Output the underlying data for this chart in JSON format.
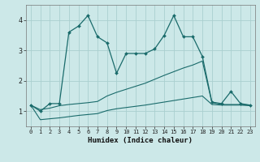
{
  "xlabel": "Humidex (Indice chaleur)",
  "xlim": [
    -0.5,
    23.5
  ],
  "ylim": [
    0.5,
    4.5
  ],
  "yticks": [
    1,
    2,
    3,
    4
  ],
  "xticks": [
    0,
    1,
    2,
    3,
    4,
    5,
    6,
    7,
    8,
    9,
    10,
    11,
    12,
    13,
    14,
    15,
    16,
    17,
    18,
    19,
    20,
    21,
    22,
    23
  ],
  "bg_color": "#cce8e8",
  "grid_color": "#aacfcf",
  "line_color": "#1a6b6b",
  "line1_x": [
    0,
    1,
    2,
    3,
    4,
    5,
    6,
    7,
    8,
    9,
    10,
    11,
    12,
    13,
    14,
    15,
    16,
    17,
    18,
    19,
    20,
    21,
    22,
    23
  ],
  "line1_y": [
    1.2,
    1.0,
    1.25,
    1.25,
    3.6,
    3.8,
    4.15,
    3.45,
    3.25,
    2.25,
    2.9,
    2.9,
    2.9,
    3.05,
    3.5,
    4.15,
    3.45,
    3.45,
    2.8,
    1.3,
    1.25,
    1.65,
    1.25,
    1.2
  ],
  "line2_x": [
    0,
    1,
    2,
    3,
    4,
    5,
    6,
    7,
    8,
    9,
    10,
    11,
    12,
    13,
    14,
    15,
    16,
    17,
    18,
    19,
    20,
    21,
    22,
    23
  ],
  "line2_y": [
    1.2,
    1.05,
    1.1,
    1.18,
    1.22,
    1.25,
    1.28,
    1.32,
    1.5,
    1.62,
    1.72,
    1.82,
    1.92,
    2.05,
    2.18,
    2.3,
    2.42,
    2.52,
    2.65,
    1.28,
    1.22,
    1.22,
    1.22,
    1.2
  ],
  "line3_x": [
    0,
    1,
    2,
    3,
    4,
    5,
    6,
    7,
    8,
    9,
    10,
    11,
    12,
    13,
    14,
    15,
    16,
    17,
    18,
    19,
    20,
    21,
    22,
    23
  ],
  "line3_y": [
    1.2,
    0.72,
    0.75,
    0.78,
    0.82,
    0.86,
    0.89,
    0.92,
    1.02,
    1.08,
    1.12,
    1.16,
    1.2,
    1.25,
    1.3,
    1.35,
    1.4,
    1.45,
    1.5,
    1.22,
    1.2,
    1.2,
    1.2,
    1.18
  ]
}
